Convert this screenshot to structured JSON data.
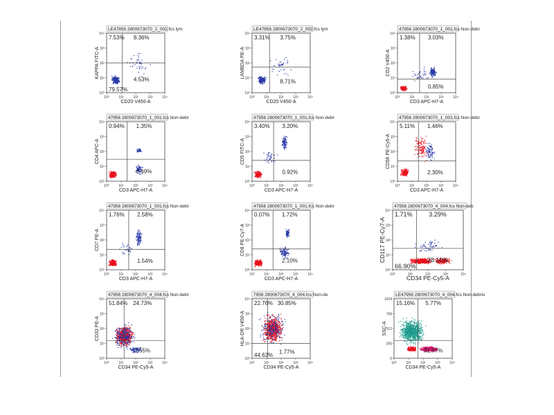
{
  "colors": {
    "bg": "#ffffff",
    "frame": "#444444",
    "gate": "#444444",
    "dots_blue": "#2b3aa8",
    "dots_red": "#e8101c",
    "dots_teal": "#1a9a8a"
  },
  "chart_data": [
    {
      "type": "scatter",
      "title": "LE47956 2800673070_2_002.fcs lym",
      "xlabel": "CD20 V450-A",
      "ylabel": "KAPPA FITC-A",
      "x_ticks": [
        "10⁰",
        "10¹",
        "10²",
        "10³",
        "10⁴"
      ],
      "y_ticks": [
        "10⁰",
        "10¹",
        "10²",
        "10³",
        "10⁴"
      ],
      "quadrants": {
        "ul": "7.53%",
        "ur": "8.36%",
        "ll": "79.57%",
        "lr": "4.53%"
      }
    },
    {
      "type": "scatter",
      "title": "LE47956 2800673070_2_002.fcs lym",
      "xlabel": "CD20 V450-A",
      "ylabel": "LAMBDA PE-A",
      "x_ticks": [
        "10⁰",
        "10¹",
        "10²",
        "10³",
        "10⁴"
      ],
      "y_ticks": [
        "10⁰",
        "10¹",
        "10²",
        "10³",
        "10⁴"
      ],
      "quadrants": {
        "ul": "3.31%",
        "ur": "3.75%",
        "ll": "",
        "lr": "8.71%"
      }
    },
    {
      "type": "scatter",
      "title": "47956 2800673070_1_001.fcs Non-debr",
      "xlabel": "CD3 APC-H7-A",
      "ylabel": "CD2 V450-A",
      "x_ticks": [
        "10⁰",
        "10¹",
        "10²",
        "10³",
        "10⁴"
      ],
      "y_ticks": [
        "10⁰",
        "10¹",
        "10²",
        "10³",
        "10⁴"
      ],
      "quadrants": {
        "ul": "1.38%",
        "ur": "3.03%",
        "ll": "",
        "lr": "0.85%"
      }
    },
    {
      "type": "scatter",
      "title": "47956 2800673070_1_001.fcs Non-debr",
      "xlabel": "CD3 APC-H7-A",
      "ylabel": "CD4 APC-A",
      "x_ticks": [
        "10⁰",
        "10¹",
        "10²",
        "10³",
        "10⁴"
      ],
      "y_ticks": [
        "10⁰",
        "10¹",
        "10²",
        "10³",
        "10⁴"
      ],
      "quadrants": {
        "ul": "0.94%",
        "ur": "1.35%",
        "ll": "",
        "lr": "2.69%"
      }
    },
    {
      "type": "scatter",
      "title": "47956 2800673070_1_001.fcs Non-debr",
      "xlabel": "CD3 APC-H7-A",
      "ylabel": "CD5 FITC-A",
      "x_ticks": [
        "10⁰",
        "10¹",
        "10²",
        "10³",
        "10⁴"
      ],
      "y_ticks": [
        "10⁰",
        "10¹",
        "10²",
        "10³",
        "10⁴"
      ],
      "quadrants": {
        "ul": "3.40%",
        "ur": "3.20%",
        "ll": "",
        "lr": "0.92%"
      }
    },
    {
      "type": "scatter",
      "title": "47956 2800673070_1_001.fcs Non-debr",
      "xlabel": "CD3 APC-H7-A",
      "ylabel": "CD56 PE-Cy5-A",
      "x_ticks": [
        "10⁰",
        "10¹",
        "10²",
        "10³",
        "10⁴"
      ],
      "y_ticks": [
        "10⁰",
        "10¹",
        "10²",
        "10³",
        "10⁴"
      ],
      "quadrants": {
        "ul": "5.11%",
        "ur": "1.46%",
        "ll": "",
        "lr": "2.30%"
      }
    },
    {
      "type": "scatter",
      "title": "47956 2800673070_1_001.fcs Non-debr",
      "xlabel": "CD3 APC-H7-A",
      "ylabel": "CD7 PE-A",
      "x_ticks": [
        "10⁰",
        "10¹",
        "10²",
        "10³",
        "10⁴"
      ],
      "y_ticks": [
        "10⁰",
        "10¹",
        "10²",
        "10³",
        "10⁴"
      ],
      "quadrants": {
        "ul": "1.76%",
        "ur": "2.58%",
        "ll": "",
        "lr": "1.54%"
      }
    },
    {
      "type": "scatter",
      "title": "47956 2800673070_1_001.fcs Non-debr",
      "xlabel": "CD3 APC-H7-A",
      "ylabel": "CD8 PE-Cy7-A",
      "x_ticks": [
        "10⁰",
        "10¹",
        "10²",
        "10³",
        "10⁴"
      ],
      "y_ticks": [
        "10⁰",
        "10¹",
        "10²",
        "10³",
        "10⁴"
      ],
      "quadrants": {
        "ul": "0.07%",
        "ur": "1.72%",
        "ll": "",
        "lr": "2.10%"
      }
    },
    {
      "type": "scatter",
      "title": "47956 2800673070_4_004.fcs Non-deb",
      "xlabel": "CD34 PE-Cy5-A",
      "ylabel": "CD117 PE-Cy7-A",
      "x_ticks": [
        "10⁰",
        "10¹",
        "10²",
        "10³",
        "10⁴"
      ],
      "y_ticks": [
        "10⁰",
        "10¹",
        "10²",
        "10³",
        "10⁴"
      ],
      "quadrants": {
        "ul": "1.71%",
        "ur": "3.29%",
        "ll": "66.90%",
        "lr": "28.10%"
      }
    },
    {
      "type": "scatter",
      "title": "47956 2800673070_4_004.fcs Non-debr",
      "xlabel": "CD34 PE-Cy5-A",
      "ylabel": "CD33 PE-A",
      "x_ticks": [
        "10⁰",
        "10¹",
        "10²",
        "10³",
        "10⁴"
      ],
      "y_ticks": [
        "10⁰",
        "10¹",
        "10²",
        "10³",
        "10⁴"
      ],
      "quadrants": {
        "ul": "51.84%",
        "ur": "24.73%",
        "ll": "",
        "lr": "7.55%"
      }
    },
    {
      "type": "scatter",
      "title": "7956 2800673070_4_004.fcs Non-de",
      "xlabel": "CD34 PE-Cy5-A",
      "ylabel": "HLA-DR V450-A",
      "x_ticks": [
        "10⁰",
        "10¹",
        "10²",
        "10³",
        "10⁴"
      ],
      "y_ticks": [
        "10⁰",
        "10¹",
        "10²",
        "10³",
        "10⁴"
      ],
      "quadrants": {
        "ul": "22.76%",
        "ur": "30.85%",
        "ll": "44.62%",
        "lr": "1.77%"
      }
    },
    {
      "type": "scatter",
      "title": "LE47956 2800673070_4_004.fcs Non-debris",
      "xlabel": "CD34 PE-Cy5-A",
      "ylabel": "SSC-A",
      "x_ticks": [
        "10⁰",
        "10¹",
        "10²",
        "10³",
        "10⁴"
      ],
      "y_ticks": [
        "0",
        "256",
        "512",
        "768",
        "1024"
      ],
      "quadrants": {
        "ul": "15.16%",
        "ur": "5.77%",
        "ll": "",
        "lr": "31.07%"
      }
    }
  ]
}
